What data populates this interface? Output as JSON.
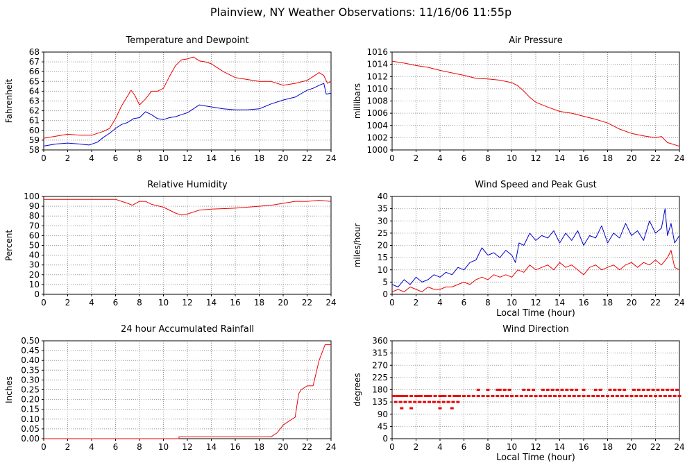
{
  "page_title": "Plainview, NY Weather Observations: 11/16/06 11:55p",
  "colors": {
    "red": "#ee0000",
    "blue": "#0000cc",
    "grid": "#999999",
    "axis": "#000000"
  },
  "chart_data": [
    {
      "id": "temp",
      "type": "line",
      "title": "Temperature and Dewpoint",
      "xlabel": "",
      "ylabel": "Fahrenheit",
      "xlim": [
        0,
        24
      ],
      "ylim": [
        58,
        68
      ],
      "xticks": [
        0,
        2,
        4,
        6,
        8,
        10,
        12,
        14,
        16,
        18,
        20,
        22,
        24
      ],
      "yticks": [
        58,
        59,
        60,
        61,
        62,
        63,
        64,
        65,
        66,
        67,
        68
      ],
      "grid": true,
      "series": [
        {
          "color": "#ee0000",
          "x": [
            0,
            1,
            2,
            3,
            4,
            5,
            5.5,
            6,
            6.5,
            7,
            7.3,
            7.6,
            8,
            8.5,
            9,
            9.5,
            10,
            10.5,
            11,
            11.5,
            12,
            12.5,
            13,
            13.5,
            14,
            15,
            16,
            17,
            18,
            19,
            20,
            21,
            22,
            22.5,
            23,
            23.4,
            23.7,
            24
          ],
          "y": [
            59.2,
            59.4,
            59.6,
            59.5,
            59.5,
            59.9,
            60.2,
            61.2,
            62.5,
            63.5,
            64.1,
            63.6,
            62.6,
            63.2,
            64.0,
            64.0,
            64.3,
            65.5,
            66.6,
            67.2,
            67.3,
            67.5,
            67.1,
            67.0,
            66.8,
            66.0,
            65.4,
            65.2,
            65.0,
            65.0,
            64.6,
            64.8,
            65.1,
            65.5,
            65.9,
            65.6,
            64.8,
            65.0
          ]
        },
        {
          "color": "#0000cc",
          "x": [
            0,
            1,
            2,
            3,
            3.8,
            4.5,
            5,
            5.5,
            6,
            6.5,
            7,
            7.5,
            8,
            8.5,
            9,
            9.5,
            10,
            10.5,
            11,
            11.5,
            12,
            12.5,
            13,
            13.5,
            14,
            15,
            16,
            17,
            18,
            19,
            20,
            21,
            22,
            22.5,
            23,
            23.4,
            23.6,
            24
          ],
          "y": [
            58.4,
            58.6,
            58.7,
            58.6,
            58.5,
            58.8,
            59.3,
            59.7,
            60.2,
            60.6,
            60.8,
            61.2,
            61.3,
            61.9,
            61.6,
            61.2,
            61.1,
            61.3,
            61.4,
            61.6,
            61.8,
            62.2,
            62.6,
            62.5,
            62.4,
            62.2,
            62.1,
            62.1,
            62.2,
            62.7,
            63.1,
            63.4,
            64.1,
            64.3,
            64.6,
            64.8,
            63.7,
            63.8
          ]
        }
      ]
    },
    {
      "id": "pressure",
      "type": "line",
      "title": "Air Pressure",
      "xlabel": "",
      "ylabel": "millibars",
      "xlim": [
        0,
        24
      ],
      "ylim": [
        1000,
        1016
      ],
      "xticks": [
        0,
        2,
        4,
        6,
        8,
        10,
        12,
        14,
        16,
        18,
        20,
        22,
        24
      ],
      "yticks": [
        1000,
        1002,
        1004,
        1006,
        1008,
        1010,
        1012,
        1014,
        1016
      ],
      "grid": true,
      "series": [
        {
          "color": "#ee0000",
          "x": [
            0,
            1,
            2,
            3,
            4,
            5,
            6,
            7,
            8,
            9,
            10,
            10.5,
            11,
            11.5,
            12,
            13,
            14,
            15,
            16,
            17,
            18,
            19,
            20,
            21,
            22,
            22.5,
            23,
            24
          ],
          "y": [
            1014.5,
            1014.2,
            1013.8,
            1013.5,
            1013.0,
            1012.6,
            1012.2,
            1011.7,
            1011.6,
            1011.4,
            1011.0,
            1010.5,
            1009.6,
            1008.6,
            1007.8,
            1007.0,
            1006.3,
            1006.0,
            1005.5,
            1005.0,
            1004.4,
            1003.4,
            1002.7,
            1002.3,
            1002.0,
            1002.2,
            1001.2,
            1000.6
          ]
        }
      ]
    },
    {
      "id": "humidity",
      "type": "line",
      "title": "Relative Humidity",
      "xlabel": "",
      "ylabel": "Percent",
      "xlim": [
        0,
        24
      ],
      "ylim": [
        0,
        100
      ],
      "xticks": [
        0,
        2,
        4,
        6,
        8,
        10,
        12,
        14,
        16,
        18,
        20,
        22,
        24
      ],
      "yticks": [
        0,
        10,
        20,
        30,
        40,
        50,
        60,
        70,
        80,
        90,
        100
      ],
      "grid": true,
      "series": [
        {
          "color": "#ee0000",
          "x": [
            0,
            2,
            4,
            6,
            7,
            7.4,
            8,
            8.5,
            9,
            10,
            11,
            11.5,
            12,
            13,
            14,
            16,
            18,
            19,
            20,
            21,
            22,
            23,
            24
          ],
          "y": [
            97,
            97,
            97,
            97,
            93,
            91,
            95,
            95,
            92,
            89,
            83,
            81,
            82,
            86,
            87,
            88,
            90,
            91,
            93,
            95,
            95,
            96,
            95
          ]
        }
      ]
    },
    {
      "id": "wind",
      "type": "line",
      "title": "Wind Speed and Peak Gust",
      "xlabel": "Local Time (hour)",
      "ylabel": "miles/hour",
      "xlim": [
        0,
        24
      ],
      "ylim": [
        0,
        40
      ],
      "xticks": [
        0,
        2,
        4,
        6,
        8,
        10,
        12,
        14,
        16,
        18,
        20,
        22,
        24
      ],
      "yticks": [
        0,
        5,
        10,
        15,
        20,
        25,
        30,
        35,
        40
      ],
      "grid": true,
      "series": [
        {
          "color": "#0000cc",
          "x": [
            0,
            0.5,
            1,
            1.5,
            2,
            2.5,
            3,
            3.5,
            4,
            4.5,
            5,
            5.5,
            6,
            6.5,
            7,
            7.5,
            8,
            8.5,
            9,
            9.5,
            10,
            10.3,
            10.6,
            11,
            11.5,
            12,
            12.5,
            13,
            13.5,
            14,
            14.5,
            15,
            15.5,
            16,
            16.5,
            17,
            17.5,
            18,
            18.5,
            19,
            19.5,
            20,
            20.5,
            21,
            21.5,
            22,
            22.5,
            22.8,
            23,
            23.3,
            23.6,
            24
          ],
          "y": [
            4,
            3,
            6,
            4,
            7,
            5,
            6,
            8,
            7,
            9,
            8,
            11,
            10,
            13,
            14,
            19,
            16,
            17,
            15,
            18,
            16,
            13,
            21,
            20,
            25,
            22,
            24,
            23,
            26,
            21,
            25,
            22,
            26,
            20,
            24,
            23,
            28,
            21,
            25,
            23,
            29,
            24,
            26,
            22,
            30,
            25,
            27,
            35,
            24,
            29,
            21,
            24
          ]
        },
        {
          "color": "#ee0000",
          "x": [
            0,
            0.5,
            1,
            1.5,
            2,
            2.5,
            3,
            3.5,
            4,
            4.5,
            5,
            5.5,
            6,
            6.5,
            7,
            7.5,
            8,
            8.5,
            9,
            9.5,
            10,
            10.5,
            11,
            11.5,
            12,
            12.5,
            13,
            13.5,
            14,
            14.5,
            15,
            15.5,
            16,
            16.5,
            17,
            17.5,
            18,
            18.5,
            19,
            19.5,
            20,
            20.5,
            21,
            21.5,
            22,
            22.5,
            23,
            23.3,
            23.6,
            24
          ],
          "y": [
            1,
            2,
            1,
            3,
            2,
            1,
            3,
            2,
            2,
            3,
            3,
            4,
            5,
            4,
            6,
            7,
            6,
            8,
            7,
            8,
            7,
            10,
            9,
            12,
            10,
            11,
            12,
            10,
            13,
            11,
            12,
            10,
            8,
            11,
            12,
            10,
            11,
            12,
            10,
            12,
            13,
            11,
            13,
            12,
            14,
            12,
            15,
            18,
            11,
            10
          ]
        }
      ]
    },
    {
      "id": "rain",
      "type": "line",
      "title": "24 hour Accumulated Rainfall",
      "xlabel": "",
      "ylabel": "Inches",
      "xlim": [
        0,
        24
      ],
      "ylim": [
        0,
        0.5
      ],
      "xticks": [
        0,
        2,
        4,
        6,
        8,
        10,
        12,
        14,
        16,
        18,
        20,
        22,
        24
      ],
      "yticks": [
        "0.00",
        "0.05",
        "0.10",
        "0.15",
        "0.20",
        "0.25",
        "0.30",
        "0.35",
        "0.40",
        "0.45",
        "0.50"
      ],
      "grid": true,
      "series": [
        {
          "color": "#ee0000",
          "x": [
            0,
            11.3,
            11.3,
            19.0,
            19.5,
            20.0,
            20.5,
            21.0,
            21.3,
            21.5,
            22.0,
            22.5,
            23.0,
            23.5,
            24
          ],
          "y": [
            0,
            0,
            0.01,
            0.01,
            0.03,
            0.07,
            0.09,
            0.11,
            0.23,
            0.25,
            0.27,
            0.27,
            0.4,
            0.48,
            0.48
          ]
        }
      ]
    },
    {
      "id": "direction",
      "type": "scatter",
      "title": "Wind Direction",
      "xlabel": "Local Time (hour)",
      "ylabel": "degrees",
      "xlim": [
        0,
        24
      ],
      "ylim": [
        0,
        360
      ],
      "xticks": [
        0,
        2,
        4,
        6,
        8,
        10,
        12,
        14,
        16,
        18,
        20,
        22,
        24
      ],
      "yticks": [
        0,
        45,
        90,
        135,
        180,
        225,
        270,
        315,
        360
      ],
      "grid": true,
      "series": [
        {
          "color": "#ee0000",
          "x": [
            0.1,
            0.4,
            0.8,
            1.2,
            1.6,
            2.0,
            2.4,
            2.8,
            3.2,
            3.6,
            4.0,
            4.4,
            4.8,
            5.2,
            5.6,
            6.0,
            6.4,
            6.8,
            7.2,
            7.6,
            8.0,
            8.4,
            8.8,
            9.2,
            9.6,
            10.0,
            10.4,
            10.8,
            11.2,
            11.6,
            12.0,
            12.4,
            12.8,
            13.2,
            13.6,
            14.0,
            14.4,
            14.8,
            15.2,
            15.6,
            16.0,
            16.4,
            16.8,
            17.2,
            17.6,
            18.0,
            18.4,
            18.8,
            19.2,
            19.6,
            20.0,
            20.4,
            20.8,
            21.2,
            21.6,
            22.0,
            22.4,
            22.8,
            23.2,
            23.6,
            24.0,
            0.3,
            0.7,
            1.1,
            1.5,
            1.9,
            2.3,
            2.7,
            3.1,
            3.5,
            3.9,
            4.3,
            4.7,
            5.1,
            5.5,
            7.2,
            8.0,
            8.8,
            9.0,
            9.4,
            9.8,
            11.0,
            11.4,
            11.8,
            12.6,
            13.0,
            13.4,
            13.8,
            14.2,
            14.6,
            15.0,
            15.4,
            16.0,
            17.0,
            17.4,
            18.2,
            18.6,
            19.0,
            19.4,
            20.2,
            20.6,
            21.0,
            21.4,
            21.8,
            22.2,
            22.6,
            23.0,
            23.4,
            23.8,
            0.8,
            1.6,
            4.0,
            5.0,
            0.6,
            1.0,
            2.2,
            3.0,
            4.2,
            5.4
          ],
          "y": [
            157,
            157,
            157,
            157,
            157,
            157,
            157,
            157,
            157,
            157,
            157,
            157,
            157,
            157,
            157,
            157,
            157,
            157,
            157,
            157,
            157,
            157,
            157,
            157,
            157,
            157,
            157,
            157,
            157,
            157,
            157,
            157,
            157,
            157,
            157,
            157,
            157,
            157,
            157,
            157,
            157,
            157,
            157,
            157,
            157,
            157,
            157,
            157,
            157,
            157,
            157,
            157,
            157,
            157,
            157,
            157,
            157,
            157,
            157,
            157,
            157,
            135,
            135,
            135,
            135,
            135,
            135,
            135,
            135,
            135,
            135,
            135,
            135,
            135,
            135,
            180,
            180,
            180,
            180,
            180,
            180,
            180,
            180,
            180,
            180,
            180,
            180,
            180,
            180,
            180,
            180,
            180,
            180,
            180,
            180,
            180,
            180,
            180,
            180,
            180,
            180,
            180,
            180,
            180,
            180,
            180,
            180,
            180,
            180,
            112,
            112,
            112,
            112,
            157,
            157,
            157,
            157,
            157,
            157
          ]
        }
      ]
    }
  ]
}
